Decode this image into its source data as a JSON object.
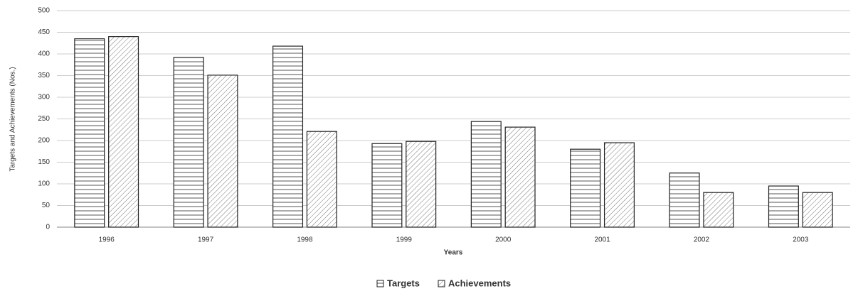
{
  "chart_data": {
    "type": "bar",
    "categories": [
      "1996",
      "1997",
      "1998",
      "1999",
      "2000",
      "2001",
      "2002",
      "2003"
    ],
    "series": [
      {
        "name": "Targets",
        "color": "#555555",
        "values": [
          435,
          392,
          418,
          193,
          244,
          180,
          125,
          95
        ]
      },
      {
        "name": "Achievements",
        "color": "#777777",
        "values": [
          440,
          351,
          221,
          198,
          231,
          195,
          80,
          80
        ]
      }
    ],
    "xlabel": "Years",
    "ylabel": "Targets and Achievements (Nos.)",
    "ylim": [
      0,
      500
    ],
    "yticks": [
      0,
      50,
      100,
      150,
      200,
      250,
      300,
      350,
      400,
      450,
      500
    ],
    "grid": true,
    "legend": "bottom"
  }
}
